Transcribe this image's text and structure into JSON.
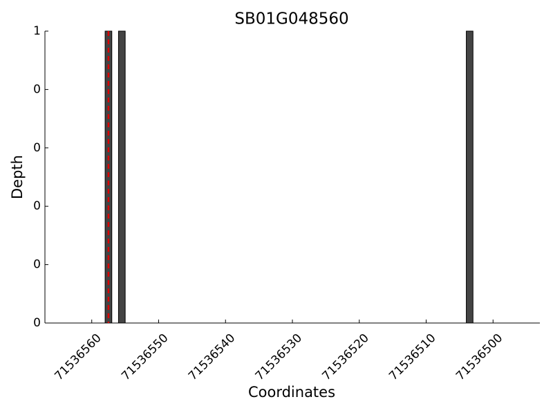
{
  "chart_data": {
    "type": "bar",
    "title": "SB01G048560",
    "x_label": "Coordinates",
    "y_label": "Depth",
    "x": [
      71536557,
      71536555,
      71536503
    ],
    "values": [
      1,
      1,
      1
    ],
    "color": "#444444",
    "marker_x": 71536557.5,
    "marker_color": "#dd0000",
    "xlim": [
      71536567,
      71536493
    ],
    "xticks": [
      71536560,
      71536550,
      71536540,
      71536530,
      71536520,
      71536510,
      71536500
    ],
    "ylim": [
      0,
      1
    ],
    "yticks": [
      {
        "value": 0,
        "label": "0"
      },
      {
        "value": 0.2,
        "label": "0"
      },
      {
        "value": 0.4,
        "label": "0"
      },
      {
        "value": 0.6,
        "label": "0"
      },
      {
        "value": 0.8,
        "label": "0"
      },
      {
        "value": 1,
        "label": "1"
      }
    ],
    "grid": false
  }
}
